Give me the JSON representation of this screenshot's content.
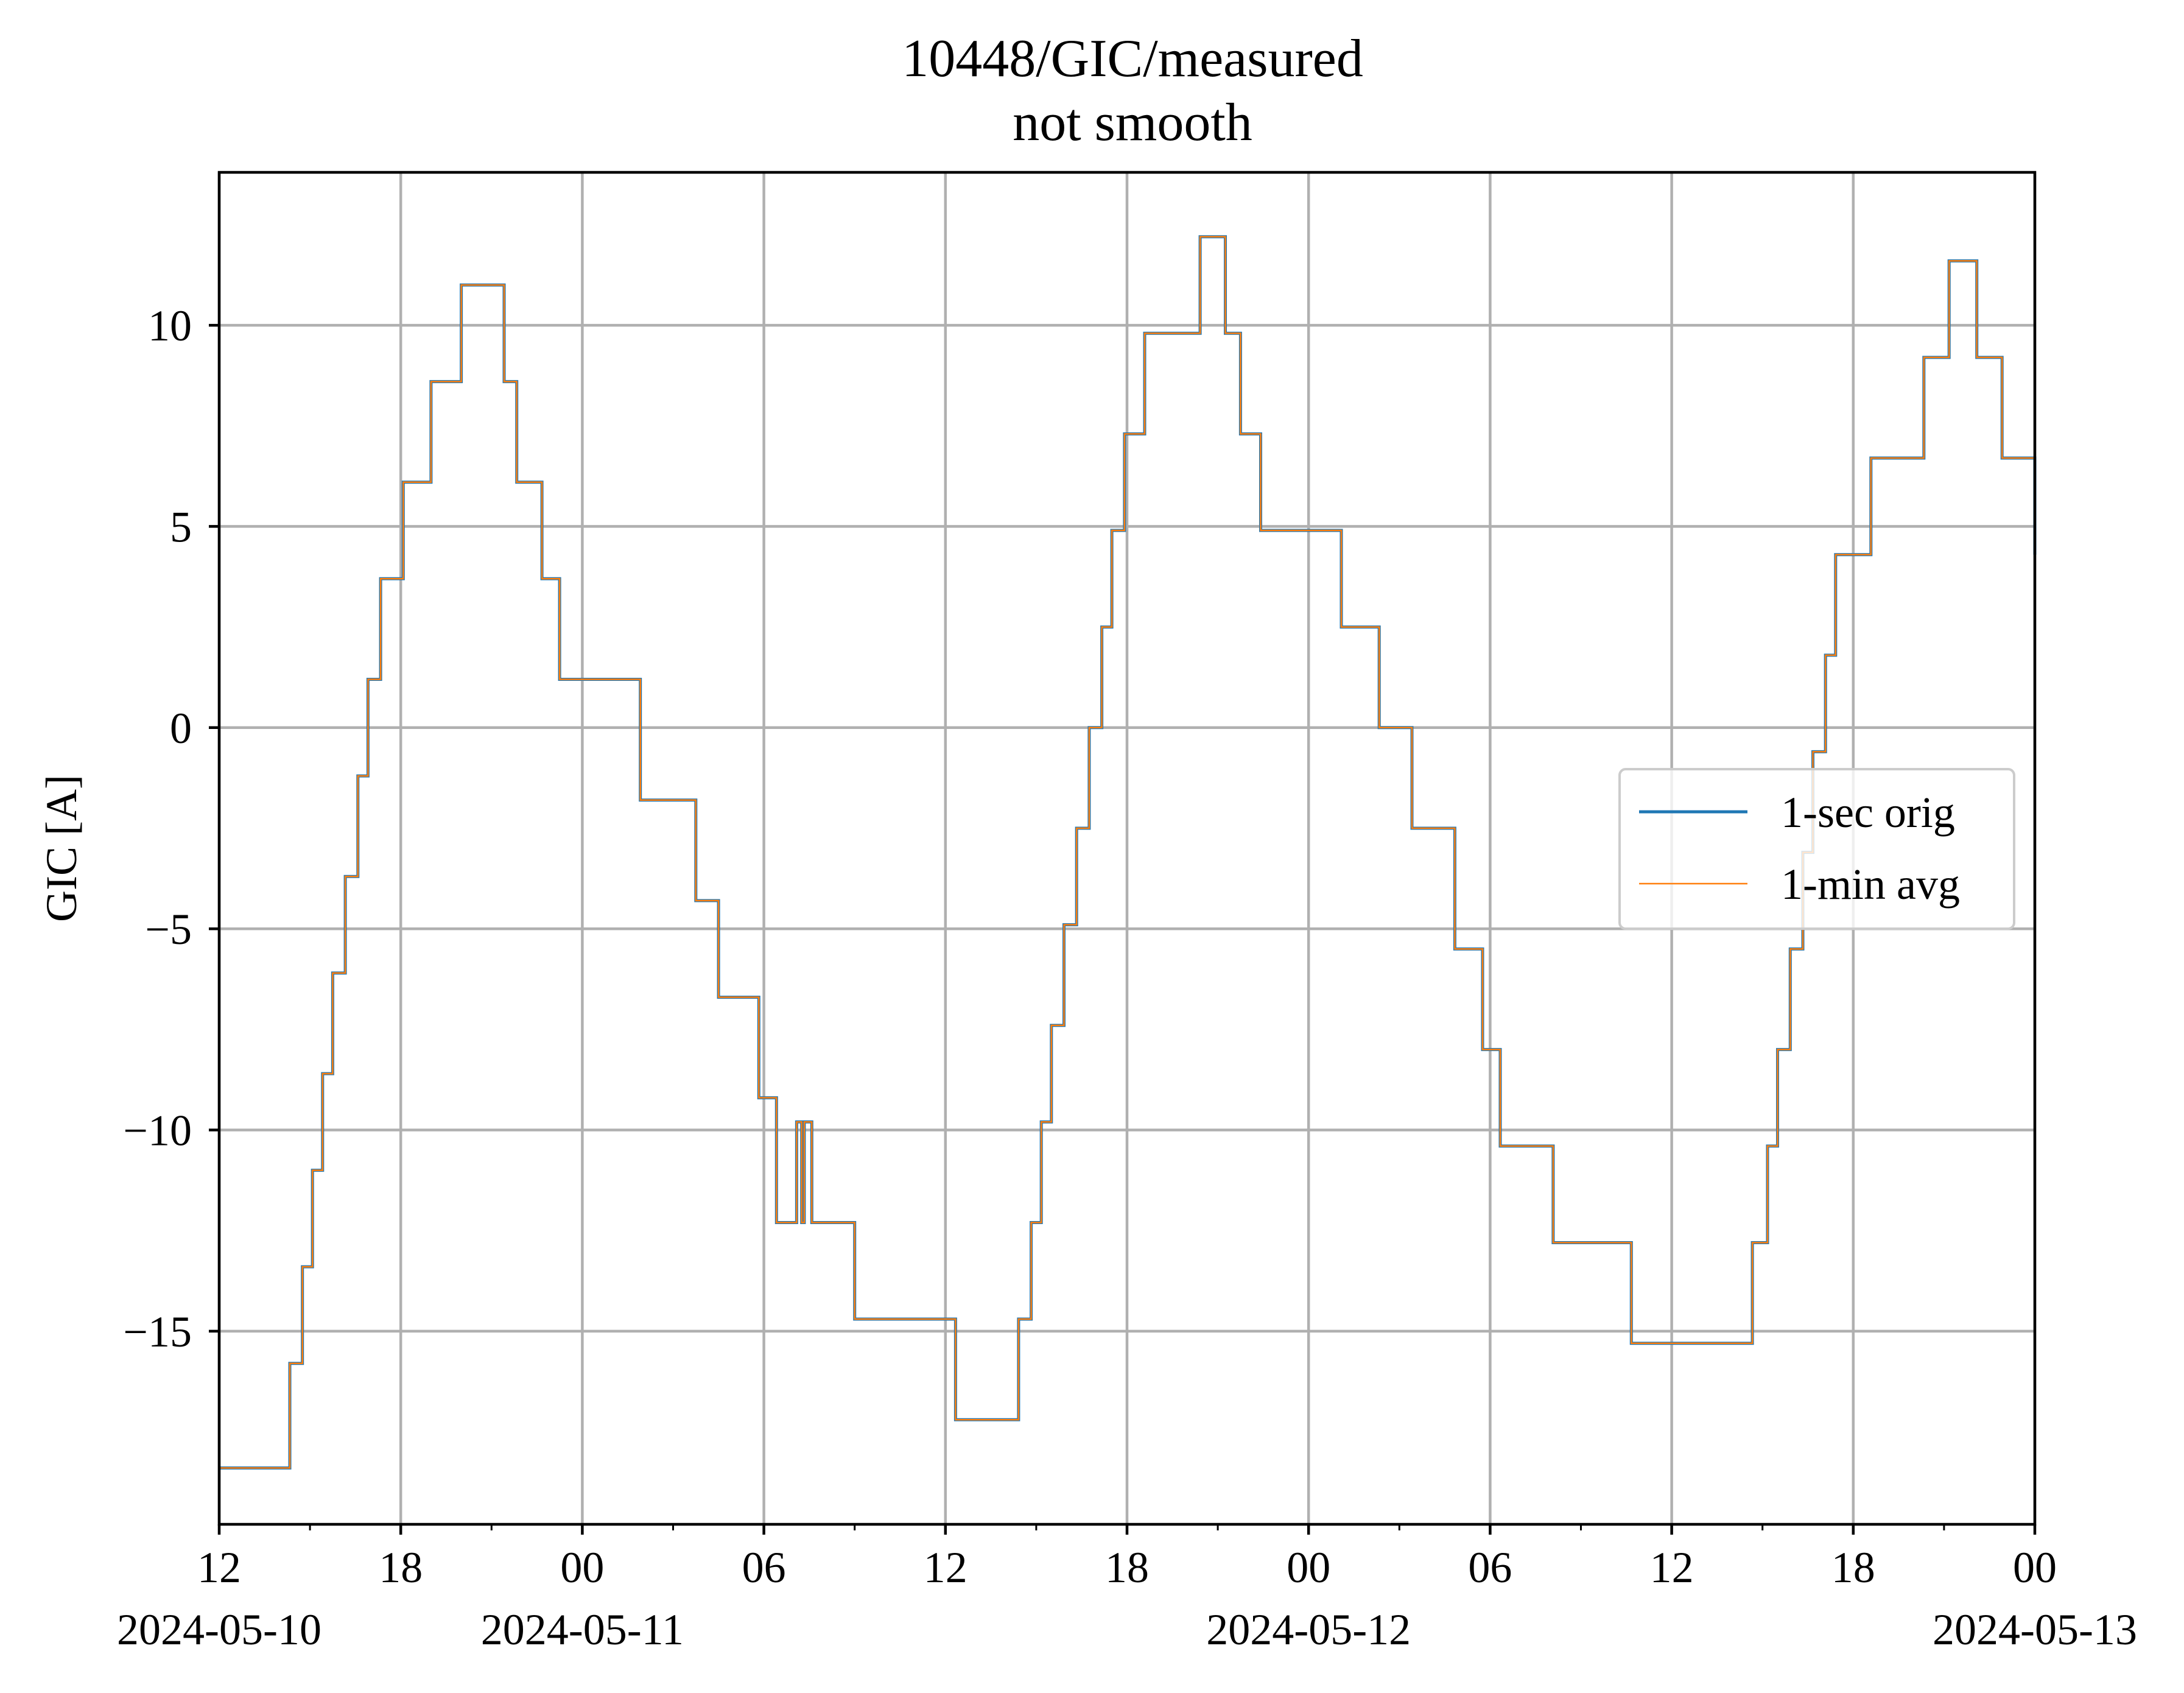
{
  "chart_data": {
    "type": "line",
    "title": "10448/GIC/measured",
    "subtitle": "not smooth",
    "xlabel": "",
    "ylabel": "GIC [A]",
    "x_is_datetime": true,
    "xlim": [
      "2024-05-10 12:00",
      "2024-05-13 00:00"
    ],
    "ylim": [
      -19.8,
      13.8
    ],
    "grid": true,
    "legend_position": "center-right",
    "x_ticks": [
      {
        "at": "2024-05-10 12:00",
        "label": "12",
        "date": "2024-05-10"
      },
      {
        "at": "2024-05-10 18:00",
        "label": "18",
        "date": ""
      },
      {
        "at": "2024-05-11 00:00",
        "label": "00",
        "date": "2024-05-11"
      },
      {
        "at": "2024-05-11 06:00",
        "label": "06",
        "date": ""
      },
      {
        "at": "2024-05-11 12:00",
        "label": "12",
        "date": ""
      },
      {
        "at": "2024-05-11 18:00",
        "label": "18",
        "date": ""
      },
      {
        "at": "2024-05-12 00:00",
        "label": "00",
        "date": "2024-05-12"
      },
      {
        "at": "2024-05-12 06:00",
        "label": "06",
        "date": ""
      },
      {
        "at": "2024-05-12 12:00",
        "label": "12",
        "date": ""
      },
      {
        "at": "2024-05-12 18:00",
        "label": "18",
        "date": ""
      },
      {
        "at": "2024-05-13 00:00",
        "label": "00",
        "date": "2024-05-13"
      }
    ],
    "x_minor_ticks": [
      "2024-05-10 15:00",
      "2024-05-10 21:00",
      "2024-05-11 03:00",
      "2024-05-11 09:00",
      "2024-05-11 15:00",
      "2024-05-11 21:00",
      "2024-05-12 03:00",
      "2024-05-12 09:00",
      "2024-05-12 15:00",
      "2024-05-12 21:00"
    ],
    "y_ticks": [
      {
        "value": 10,
        "label": "10"
      },
      {
        "value": 5,
        "label": "5"
      },
      {
        "value": 0,
        "label": "0"
      },
      {
        "value": -5,
        "label": "−5"
      },
      {
        "value": -10,
        "label": "−10"
      },
      {
        "value": -15,
        "label": "−15"
      }
    ],
    "series": [
      {
        "name": "1-sec orig",
        "color": "#1f77b4",
        "style": "steps-post",
        "x": [
          "2024-05-10 12:00",
          "2024-05-10 12:05",
          "2024-05-10 14:20",
          "2024-05-10 14:45",
          "2024-05-10 15:05",
          "2024-05-10 15:25",
          "2024-05-10 15:45",
          "2024-05-10 16:10",
          "2024-05-10 16:35",
          "2024-05-10 16:55",
          "2024-05-10 17:20",
          "2024-05-10 18:05",
          "2024-05-10 19:00",
          "2024-05-10 20:00",
          "2024-05-10 21:25",
          "2024-05-10 21:50",
          "2024-05-10 22:40",
          "2024-05-10 23:15",
          "2024-05-11 01:55",
          "2024-05-11 03:45",
          "2024-05-11 04:30",
          "2024-05-11 05:50",
          "2024-05-11 06:25",
          "2024-05-11 07:05",
          "2024-05-11 07:15",
          "2024-05-11 07:20",
          "2024-05-11 07:35",
          "2024-05-11 09:00",
          "2024-05-11 12:20",
          "2024-05-11 14:25",
          "2024-05-11 14:50",
          "2024-05-11 15:10",
          "2024-05-11 15:30",
          "2024-05-11 15:55",
          "2024-05-11 16:20",
          "2024-05-11 16:45",
          "2024-05-11 17:10",
          "2024-05-11 17:30",
          "2024-05-11 17:55",
          "2024-05-11 18:35",
          "2024-05-11 20:25",
          "2024-05-11 21:15",
          "2024-05-11 21:45",
          "2024-05-11 22:25",
          "2024-05-12 01:05",
          "2024-05-12 02:20",
          "2024-05-12 03:25",
          "2024-05-12 04:50",
          "2024-05-12 05:45",
          "2024-05-12 06:20",
          "2024-05-12 08:05",
          "2024-05-12 10:40",
          "2024-05-12 14:40",
          "2024-05-12 15:10",
          "2024-05-12 15:30",
          "2024-05-12 15:55",
          "2024-05-12 16:20",
          "2024-05-12 16:40",
          "2024-05-12 17:05",
          "2024-05-12 17:25",
          "2024-05-12 18:35",
          "2024-05-12 20:20",
          "2024-05-12 21:10",
          "2024-05-12 22:05",
          "2024-05-12 22:55",
          "2024-05-13 00:00"
        ],
        "y": [
          -18.4,
          -18.4,
          -15.8,
          -13.4,
          -11.0,
          -8.6,
          -6.1,
          -3.7,
          -1.2,
          1.2,
          3.7,
          6.1,
          8.6,
          11.0,
          8.6,
          6.1,
          3.7,
          1.2,
          -1.8,
          -4.3,
          -6.7,
          -9.2,
          -12.3,
          -9.8,
          -12.3,
          -9.8,
          -12.3,
          -14.7,
          -17.2,
          -14.7,
          -12.3,
          -9.8,
          -7.4,
          -4.9,
          -2.5,
          0.0,
          2.5,
          4.9,
          7.3,
          9.8,
          12.2,
          9.8,
          7.3,
          4.9,
          2.5,
          0.0,
          -2.5,
          -5.5,
          -8.0,
          -10.4,
          -12.8,
          -15.3,
          -12.8,
          -10.4,
          -8.0,
          -5.5,
          -3.1,
          -0.6,
          1.8,
          4.3,
          6.7,
          9.2,
          11.6,
          9.2,
          6.7,
          4.3
        ]
      },
      {
        "name": "1-min avg",
        "color": "#ff7f0e",
        "style": "steps-post",
        "x": [
          "2024-05-10 12:00",
          "2024-05-10 12:05",
          "2024-05-10 14:20",
          "2024-05-10 14:45",
          "2024-05-10 15:05",
          "2024-05-10 15:25",
          "2024-05-10 15:45",
          "2024-05-10 16:10",
          "2024-05-10 16:35",
          "2024-05-10 16:55",
          "2024-05-10 17:20",
          "2024-05-10 18:05",
          "2024-05-10 19:00",
          "2024-05-10 20:00",
          "2024-05-10 21:25",
          "2024-05-10 21:50",
          "2024-05-10 22:40",
          "2024-05-10 23:15",
          "2024-05-11 01:55",
          "2024-05-11 03:45",
          "2024-05-11 04:30",
          "2024-05-11 05:50",
          "2024-05-11 06:25",
          "2024-05-11 07:05",
          "2024-05-11 07:15",
          "2024-05-11 07:20",
          "2024-05-11 07:35",
          "2024-05-11 09:00",
          "2024-05-11 12:20",
          "2024-05-11 14:25",
          "2024-05-11 14:50",
          "2024-05-11 15:10",
          "2024-05-11 15:30",
          "2024-05-11 15:55",
          "2024-05-11 16:20",
          "2024-05-11 16:45",
          "2024-05-11 17:10",
          "2024-05-11 17:30",
          "2024-05-11 17:55",
          "2024-05-11 18:35",
          "2024-05-11 20:25",
          "2024-05-11 21:15",
          "2024-05-11 21:45",
          "2024-05-11 22:25",
          "2024-05-12 01:05",
          "2024-05-12 02:20",
          "2024-05-12 03:25",
          "2024-05-12 04:50",
          "2024-05-12 05:45",
          "2024-05-12 06:20",
          "2024-05-12 08:05",
          "2024-05-12 10:40",
          "2024-05-12 14:40",
          "2024-05-12 15:10",
          "2024-05-12 15:30",
          "2024-05-12 15:55",
          "2024-05-12 16:20",
          "2024-05-12 16:40",
          "2024-05-12 17:05",
          "2024-05-12 17:25",
          "2024-05-12 18:35",
          "2024-05-12 20:20",
          "2024-05-12 21:10",
          "2024-05-12 22:05",
          "2024-05-12 22:55",
          "2024-05-13 00:00"
        ],
        "y": [
          -18.4,
          -18.4,
          -15.8,
          -13.4,
          -11.0,
          -8.6,
          -6.1,
          -3.7,
          -1.2,
          1.2,
          3.7,
          6.1,
          8.6,
          11.0,
          8.6,
          6.1,
          3.7,
          1.2,
          -1.8,
          -4.3,
          -6.7,
          -9.2,
          -12.3,
          -9.8,
          -12.3,
          -9.8,
          -12.3,
          -14.7,
          -17.2,
          -14.7,
          -12.3,
          -9.8,
          -7.4,
          -4.9,
          -2.5,
          0.0,
          2.5,
          4.9,
          7.3,
          9.8,
          12.2,
          9.8,
          7.3,
          4.9,
          2.5,
          0.0,
          -2.5,
          -5.5,
          -8.0,
          -10.4,
          -12.8,
          -15.3,
          -12.8,
          -10.4,
          -8.0,
          -5.5,
          -3.1,
          -0.6,
          1.8,
          4.3,
          6.7,
          9.2,
          11.6,
          9.2,
          6.7,
          4.3
        ]
      }
    ]
  }
}
